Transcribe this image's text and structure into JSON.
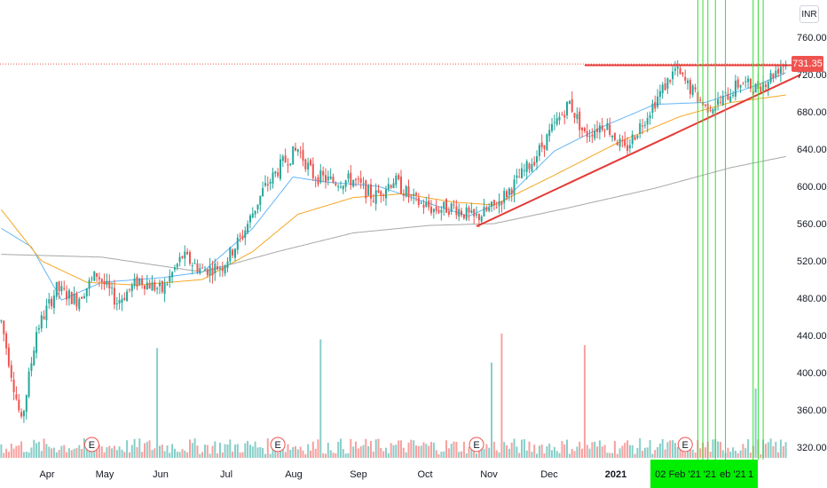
{
  "currency_badge": "INR",
  "last_price_label": "731.35",
  "colors": {
    "up": "#26a69a",
    "down": "#ef5350",
    "ma_fast": "#64b5f6",
    "ma_mid": "#f6a623",
    "ma_slow": "#a5a9a6",
    "trendline": "#e53935",
    "highlight_line": "#33dd33",
    "highlight_box": "#00ee00"
  },
  "chart_data": {
    "type": "candlestick",
    "title": "",
    "y_axis": {
      "ticks": [
        760,
        720,
        680,
        640,
        600,
        560,
        520,
        480,
        440,
        400,
        360,
        320
      ],
      "tick_labels": [
        "760.00",
        "720.00",
        "680.00",
        "640.00",
        "600.00",
        "560.00",
        "520.00",
        "480.00",
        "440.00",
        "400.00",
        "360.00",
        "320.00"
      ],
      "range": [
        308,
        774
      ]
    },
    "x_axis": {
      "labels": [
        "Apr",
        "May",
        "Jun",
        "Jul",
        "Aug",
        "Sep",
        "Oct",
        "Nov",
        "Dec",
        "2021",
        "02 Feb '21",
        "'21",
        "eb '21",
        "1"
      ],
      "label_weights": [
        "normal",
        "normal",
        "normal",
        "normal",
        "normal",
        "normal",
        "normal",
        "normal",
        "normal",
        "bold",
        "normal",
        "normal",
        "normal",
        "normal"
      ]
    },
    "last_price": 731.35,
    "price_anchors": [
      [
        0,
        455
      ],
      [
        8,
        345
      ],
      [
        14,
        445
      ],
      [
        22,
        490
      ],
      [
        30,
        478
      ],
      [
        38,
        506
      ],
      [
        46,
        476
      ],
      [
        55,
        500
      ],
      [
        64,
        488
      ],
      [
        72,
        525
      ],
      [
        80,
        510
      ],
      [
        88,
        515
      ],
      [
        96,
        548
      ],
      [
        104,
        595
      ],
      [
        112,
        625
      ],
      [
        118,
        640
      ],
      [
        124,
        612
      ],
      [
        132,
        605
      ],
      [
        140,
        607
      ],
      [
        148,
        588
      ],
      [
        156,
        607
      ],
      [
        164,
        585
      ],
      [
        172,
        575
      ],
      [
        180,
        578
      ],
      [
        188,
        565
      ],
      [
        196,
        578
      ],
      [
        204,
        602
      ],
      [
        212,
        630
      ],
      [
        220,
        665
      ],
      [
        226,
        690
      ],
      [
        232,
        655
      ],
      [
        240,
        668
      ],
      [
        248,
        638
      ],
      [
        254,
        665
      ],
      [
        262,
        700
      ],
      [
        268,
        725
      ],
      [
        274,
        705
      ],
      [
        280,
        685
      ],
      [
        286,
        690
      ],
      [
        294,
        712
      ],
      [
        300,
        705
      ],
      [
        306,
        718
      ],
      [
        310,
        730
      ],
      [
        312,
        731.35
      ]
    ],
    "moving_averages": [
      {
        "name": "",
        "anchors": [
          [
            0,
            555
          ],
          [
            12,
            535
          ],
          [
            24,
            478
          ],
          [
            40,
            497
          ],
          [
            64,
            502
          ],
          [
            80,
            508
          ],
          [
            100,
            555
          ],
          [
            116,
            610
          ],
          [
            128,
            605
          ],
          [
            150,
            600
          ],
          [
            172,
            580
          ],
          [
            186,
            568
          ],
          [
            200,
            585
          ],
          [
            220,
            638
          ],
          [
            240,
            665
          ],
          [
            260,
            688
          ],
          [
            280,
            690
          ],
          [
            300,
            708
          ],
          [
            312,
            722
          ]
        ]
      },
      {
        "name": "",
        "anchors": [
          [
            0,
            575
          ],
          [
            16,
            520
          ],
          [
            34,
            497
          ],
          [
            54,
            494
          ],
          [
            80,
            500
          ],
          [
            100,
            530
          ],
          [
            118,
            570
          ],
          [
            140,
            588
          ],
          [
            160,
            592
          ],
          [
            180,
            583
          ],
          [
            196,
            580
          ],
          [
            220,
            612
          ],
          [
            246,
            648
          ],
          [
            270,
            675
          ],
          [
            290,
            690
          ],
          [
            312,
            698
          ]
        ]
      },
      {
        "name": "",
        "anchors": [
          [
            0,
            527
          ],
          [
            40,
            524
          ],
          [
            80,
            508
          ],
          [
            110,
            530
          ],
          [
            140,
            550
          ],
          [
            170,
            558
          ],
          [
            196,
            560
          ],
          [
            224,
            576
          ],
          [
            260,
            598
          ],
          [
            290,
            620
          ],
          [
            312,
            632
          ]
        ]
      }
    ],
    "trendlines": [
      {
        "from": [
          189,
          557
        ],
        "to": [
          318,
          720
        ]
      },
      {
        "from": [
          232,
          730
        ],
        "to": [
          318,
          730
        ]
      }
    ],
    "volume": {
      "spikes": [
        [
          62,
          38
        ],
        [
          127,
          41
        ],
        [
          195,
          33
        ],
        [
          199,
          43
        ],
        [
          232,
          39
        ],
        [
          300,
          24
        ]
      ],
      "event_markers": [
        [
          36,
          "E"
        ],
        [
          110,
          "E"
        ],
        [
          189,
          "E"
        ],
        [
          272,
          "E"
        ]
      ]
    },
    "highlight_lines_x": [
      277,
      279,
      281,
      284,
      288,
      299,
      301,
      303
    ],
    "grid": false,
    "legend": "none"
  }
}
